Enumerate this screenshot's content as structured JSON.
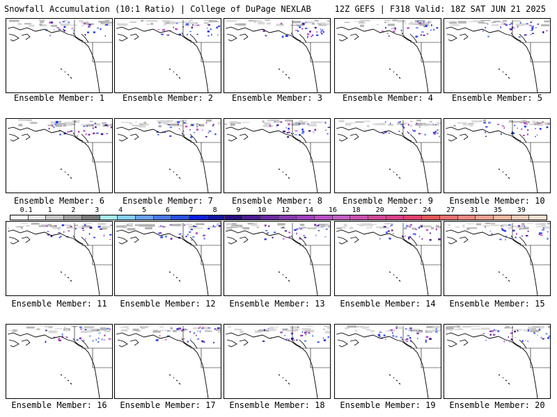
{
  "header": {
    "title_left": "Snowfall Accumulation (10:1 Ratio) | College of DuPage NEXLAB",
    "title_right": "12Z GEFS | F318 Valid: 18Z SAT JUN 21 2025"
  },
  "panels": [
    {
      "label": "Ensemble Member: 1"
    },
    {
      "label": "Ensemble Member: 2"
    },
    {
      "label": "Ensemble Member: 3"
    },
    {
      "label": "Ensemble Member: 4"
    },
    {
      "label": "Ensemble Member: 5"
    },
    {
      "label": "Ensemble Member: 6"
    },
    {
      "label": "Ensemble Member: 7"
    },
    {
      "label": "Ensemble Member: 8"
    },
    {
      "label": "Ensemble Member: 9"
    },
    {
      "label": "Ensemble Member: 10"
    },
    {
      "label": "Ensemble Member: 11"
    },
    {
      "label": "Ensemble Member: 12"
    },
    {
      "label": "Ensemble Member: 13"
    },
    {
      "label": "Ensemble Member: 14"
    },
    {
      "label": "Ensemble Member: 15"
    },
    {
      "label": "Ensemble Member: 16"
    },
    {
      "label": "Ensemble Member: 17"
    },
    {
      "label": "Ensemble Member: 18"
    },
    {
      "label": "Ensemble Member: 19"
    },
    {
      "label": "Ensemble Member: 20"
    }
  ],
  "scale": {
    "labels": [
      "0.1",
      "1",
      "2",
      "3",
      "4",
      "5",
      "6",
      "7",
      "8",
      "9",
      "10",
      "12",
      "14",
      "16",
      "18",
      "20",
      "22",
      "24",
      "27",
      "31",
      "35",
      "39"
    ],
    "colors": [
      "#ffffff",
      "#e6e6e6",
      "#c8c8c8",
      "#a0a0a0",
      "#7a7a7a",
      "#a8f0f0",
      "#87cefa",
      "#6aa0f0",
      "#4a78e8",
      "#2850e0",
      "#0a1ee0",
      "#1414a0",
      "#2a0a80",
      "#4a1a90",
      "#6a2aa0",
      "#8a3ab0",
      "#a040c0",
      "#b850c8",
      "#c060c0",
      "#c850b0",
      "#d04898",
      "#d84088",
      "#e04070",
      "#e05858",
      "#e87070",
      "#f08880",
      "#f0a090",
      "#f8b8a0",
      "#f8ccb8",
      "#fce0d0"
    ]
  }
}
